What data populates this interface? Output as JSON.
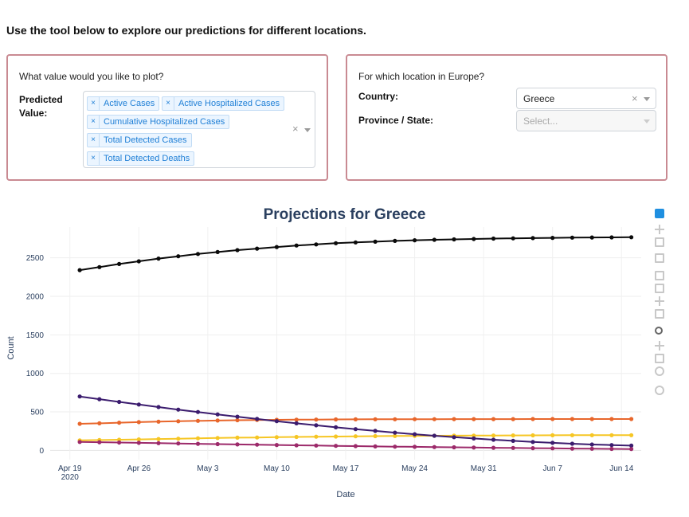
{
  "intro": "Use the tool below to explore our predictions for different locations.",
  "value_card": {
    "question": "What value would you like to plot?",
    "label_line1": "Predicted",
    "label_line2": "Value:",
    "selected": [
      "Active Cases",
      "Active Hospitalized Cases",
      "Cumulative Hospitalized Cases",
      "Total Detected Cases",
      "Total Detected Deaths"
    ],
    "remove_glyph": "×",
    "clear_glyph": "×"
  },
  "location_card": {
    "question": "For which location in Europe?",
    "country_label": "Country:",
    "country_value": "Greece",
    "province_label": "Province / State:",
    "province_placeholder": "Select...",
    "clear_glyph": "×"
  },
  "chart_data": {
    "type": "line",
    "title": "Projections for Greece",
    "xlabel": "Date",
    "ylabel": "Count",
    "x_start": "2020-04-20",
    "x_step_days": 2,
    "x_count": 29,
    "xlim": [
      "2020-04-17",
      "2020-06-16"
    ],
    "ylim": [
      -120,
      2900
    ],
    "x_tick_labels": [
      "Apr 19\n2020",
      "Apr 26",
      "May 3",
      "May 10",
      "May 17",
      "May 24",
      "May 31",
      "Jun 7",
      "Jun 14"
    ],
    "y_ticks": [
      0,
      500,
      1000,
      1500,
      2000,
      2500
    ],
    "grid": true,
    "series": [
      {
        "color": "#0a0a0a",
        "values": [
          2340,
          2380,
          2420,
          2455,
          2490,
          2520,
          2550,
          2575,
          2600,
          2620,
          2640,
          2660,
          2675,
          2690,
          2700,
          2710,
          2720,
          2728,
          2735,
          2740,
          2745,
          2750,
          2753,
          2756,
          2759,
          2762,
          2764,
          2766,
          2768
        ]
      },
      {
        "color": "#e8662b",
        "values": [
          345,
          352,
          360,
          367,
          373,
          379,
          384,
          388,
          392,
          395,
          397,
          399,
          400,
          402,
          403,
          404,
          404,
          405,
          405,
          406,
          406,
          406,
          406,
          407,
          407,
          407,
          407,
          407,
          407
        ]
      },
      {
        "color": "#f6c624",
        "values": [
          130,
          134,
          139,
          143,
          148,
          152,
          157,
          161,
          165,
          168,
          172,
          175,
          178,
          180,
          183,
          185,
          187,
          189,
          190,
          191,
          192,
          193,
          194,
          195,
          196,
          197,
          197,
          198,
          198
        ]
      },
      {
        "color": "#3b1c6e",
        "values": [
          700,
          665,
          630,
          596,
          563,
          530,
          498,
          467,
          437,
          408,
          380,
          352,
          326,
          300,
          276,
          253,
          231,
          210,
          190,
          172,
          155,
          139,
          124,
          110,
          98,
          87,
          77,
          69,
          62
        ]
      },
      {
        "color": "#9c2a6a",
        "values": [
          110,
          106,
          102,
          98,
          94,
          90,
          86,
          82,
          78,
          74,
          70,
          66,
          63,
          59,
          56,
          52,
          49,
          46,
          43,
          40,
          37,
          34,
          32,
          29,
          27,
          24,
          22,
          20,
          18
        ]
      }
    ]
  },
  "modebar": {
    "active_color": "#1f8fe0",
    "icon_color": "#c8c8c8",
    "dark_icon_color": "#666666",
    "icons": [
      "plotly-logo-icon",
      "pan-axis-icon",
      "tag-icon",
      "compare-hover-icon",
      "autoscale-icon",
      "zoom-out-box-icon",
      "reset-axes-icon",
      "home-icon",
      "zoom-icon",
      "pan-icon",
      "box-select-icon",
      "lasso-icon",
      "camera-icon"
    ]
  }
}
